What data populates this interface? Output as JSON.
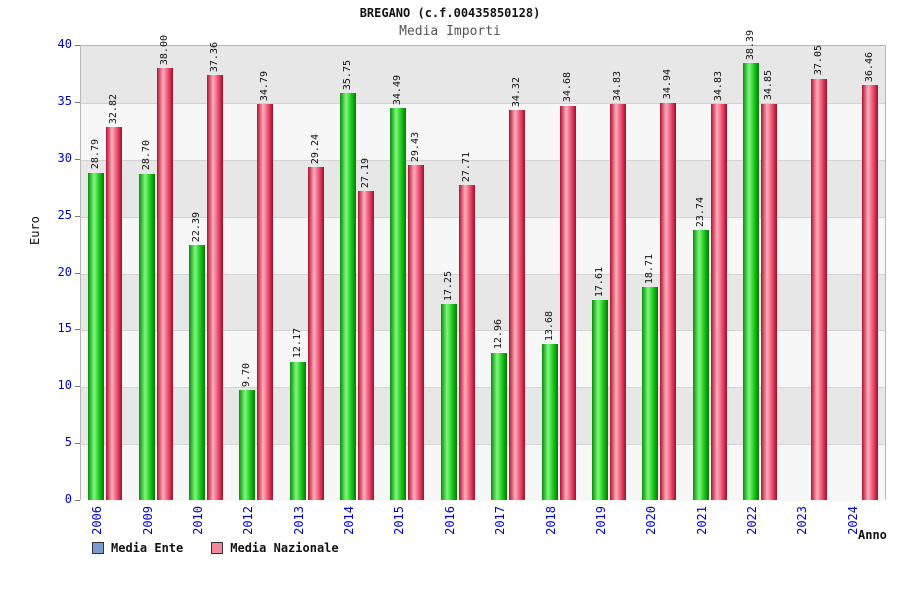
{
  "header": {
    "title": "BREGANO (c.f.00435850128)",
    "subtitle": "Media Importi"
  },
  "chart_data": {
    "type": "bar",
    "title": "BREGANO (c.f.00435850128)",
    "subtitle": "Media Importi",
    "xlabel": "Anno",
    "ylabel": "Euro",
    "ylim": [
      0,
      40
    ],
    "ytick_step": 5,
    "grid": true,
    "legend_position": "bottom-left",
    "categories": [
      "2006",
      "2009",
      "2010",
      "2012",
      "2013",
      "2014",
      "2015",
      "2016",
      "2017",
      "2018",
      "2019",
      "2020",
      "2021",
      "2022",
      "2023",
      "2024"
    ],
    "series": [
      {
        "name": "Media Ente",
        "bar_color": "#18c418",
        "legend_color": "#7a9bd0",
        "values": [
          28.79,
          28.7,
          22.39,
          9.7,
          12.17,
          35.75,
          34.49,
          17.25,
          12.96,
          13.68,
          17.61,
          18.71,
          23.74,
          38.39,
          null,
          null
        ]
      },
      {
        "name": "Media Nazionale",
        "bar_color": "#e8486a",
        "legend_color": "#f08a9b",
        "values": [
          32.82,
          38.0,
          37.36,
          34.79,
          29.24,
          27.19,
          29.43,
          27.71,
          34.32,
          34.68,
          34.83,
          34.94,
          34.83,
          34.85,
          37.05,
          36.46
        ]
      }
    ],
    "colors": {
      "axis_label": "#0000cc",
      "band_dark": "#e7e7e7",
      "band_light": "#f7f7f7",
      "gridline": "#d2d2d2"
    }
  }
}
